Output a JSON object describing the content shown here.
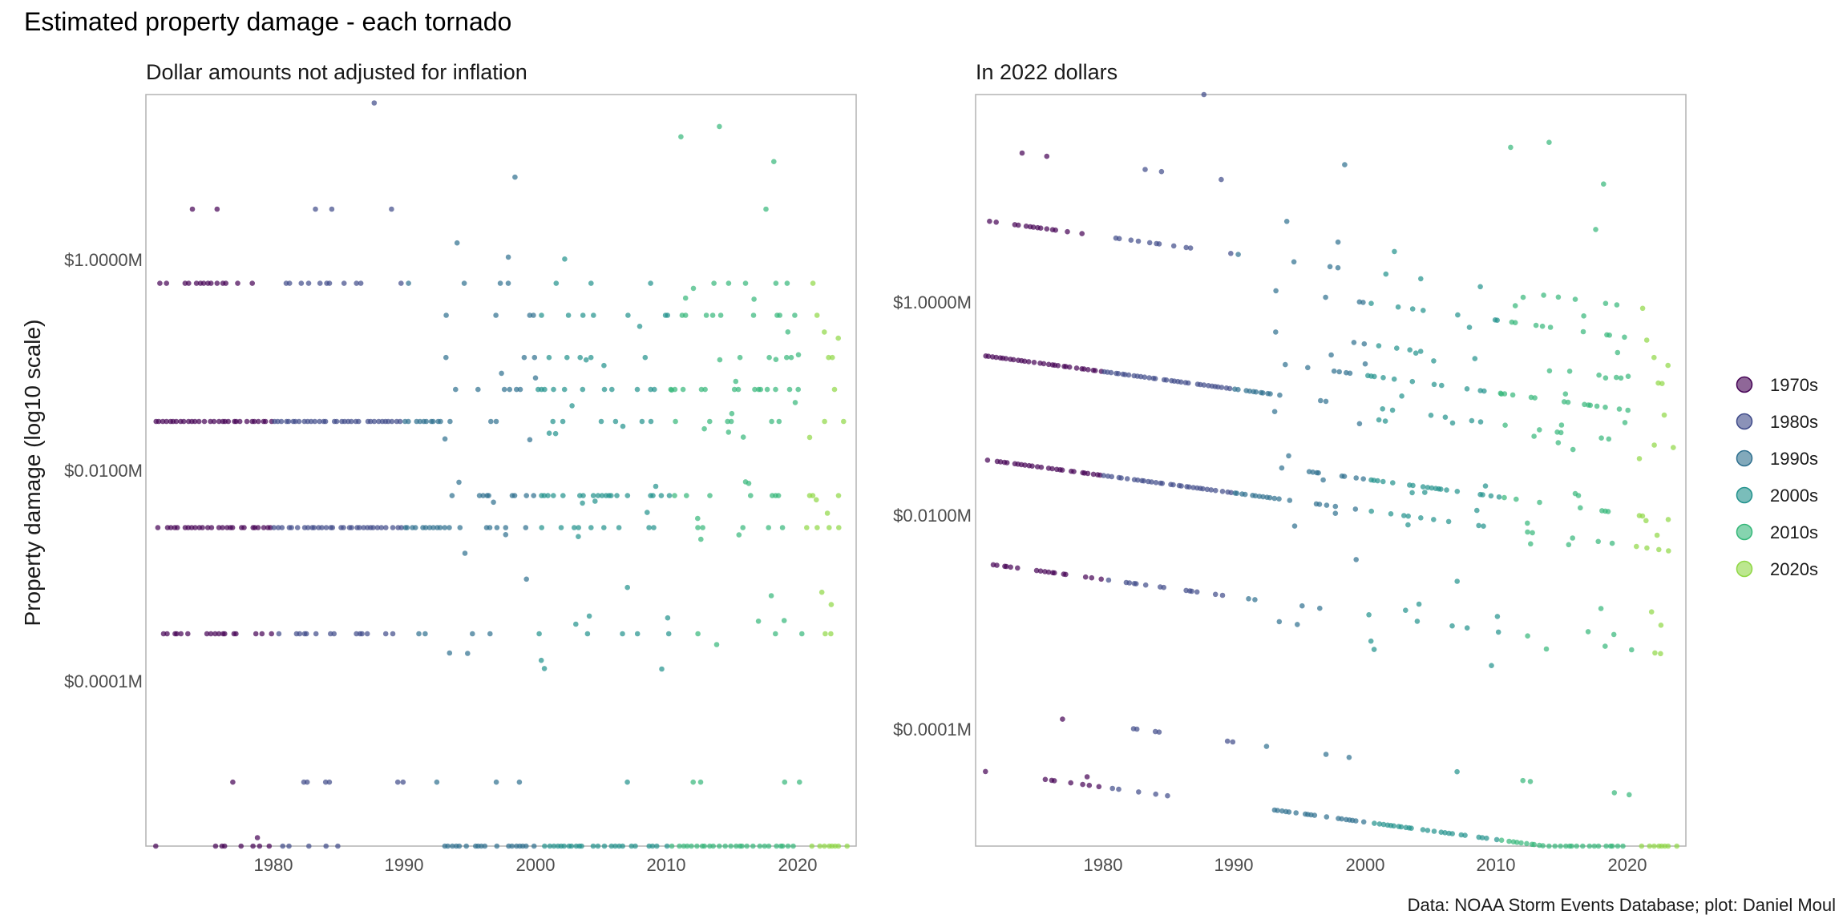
{
  "chart_data": {
    "type": "scatter",
    "title": "Estimated property damage - each tornado",
    "ylabel": "Property damage (log10 scale)",
    "caption": "Data: NOAA Storm Events Database; plot: Daniel Moul",
    "x_ticks": [
      1980,
      1990,
      2000,
      2010,
      2020
    ],
    "xlim": [
      1970.5,
      2024
    ],
    "grid": false,
    "legend_position": "right",
    "legend": [
      {
        "label": "1970s",
        "color": "#440154"
      },
      {
        "label": "1980s",
        "color": "#3e4a89"
      },
      {
        "label": "1990s",
        "color": "#2e6f8e"
      },
      {
        "label": "2000s",
        "color": "#21918c"
      },
      {
        "label": "2010s",
        "color": "#35b779"
      },
      {
        "label": "2020s",
        "color": "#8fd744"
      }
    ],
    "panels": [
      {
        "subtitle": "Dollar amounts not adjusted for inflation",
        "y_scale": "log10",
        "ylim_millions": [
          2.5e-06,
          30
        ],
        "y_ticks": [
          {
            "value": 1,
            "label": "$1.0000M"
          },
          {
            "value": 0.01,
            "label": "$0.0100M"
          },
          {
            "value": 0.0001,
            "label": "$0.0001M"
          }
        ],
        "levels_millions": [
          2.5e-06,
          1e-05,
          0.00025,
          0.0025,
          0.005,
          0.025,
          0.05,
          0.1,
          0.25,
          0.5,
          2.5
        ],
        "extremes": [
          {
            "year": 1987.7,
            "value": 25
          },
          {
            "year": 2013.7,
            "value": 15
          },
          {
            "year": 2010.8,
            "value": 12
          },
          {
            "year": 2017.8,
            "value": 7
          },
          {
            "year": 1998.3,
            "value": 5
          },
          {
            "year": 1974,
            "value": 2.5
          },
          {
            "year": 1984.5,
            "value": 2.5
          },
          {
            "year": 1989,
            "value": 2.5
          },
          {
            "year": 1978.9,
            "value": 3e-06
          }
        ]
      },
      {
        "subtitle": "In 2022 dollars",
        "y_scale": "log10",
        "ylim_millions": [
          3.5e-06,
          60
        ],
        "y_ticks": [
          {
            "value": 1,
            "label": "$1.0000M"
          },
          {
            "value": 0.01,
            "label": "$0.0100M"
          },
          {
            "value": 0.0001,
            "label": "$0.0001M"
          }
        ],
        "inflation_factor_1972": 7.1,
        "extremes": [
          {
            "year": 1987.7,
            "value": 50
          },
          {
            "year": 2013.7,
            "value": 18
          },
          {
            "year": 2010.8,
            "value": 15
          },
          {
            "year": 1974,
            "value": 14
          },
          {
            "year": 2017.8,
            "value": 8
          },
          {
            "year": 1998.3,
            "value": 9
          },
          {
            "year": 1984.5,
            "value": 6
          },
          {
            "year": 1972.2,
            "value": 0.00018
          }
        ]
      }
    ]
  }
}
